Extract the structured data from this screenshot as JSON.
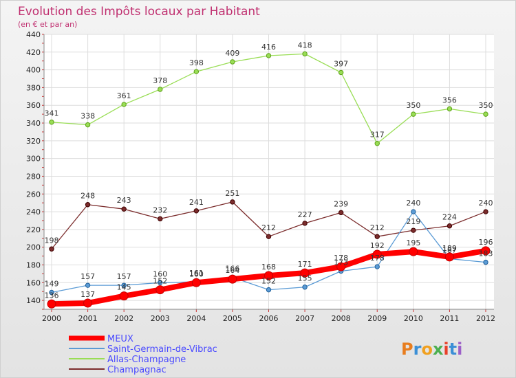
{
  "chart_data": {
    "type": "line",
    "title": "Evolution des Impôts locaux par Habitant",
    "subtitle": "(en € et par an)",
    "xlabel": "",
    "ylabel": "",
    "x": [
      "2000",
      "2001",
      "2002",
      "2003",
      "2004",
      "2005",
      "2006",
      "2007",
      "2008",
      "2009",
      "2010",
      "2011",
      "2012"
    ],
    "ylim": [
      130,
      440
    ],
    "yticks": [
      140,
      160,
      180,
      200,
      220,
      240,
      260,
      280,
      300,
      320,
      340,
      360,
      380,
      400,
      420,
      440
    ],
    "grid": true,
    "legend_position": "bottom-left",
    "series": [
      {
        "name": "MEUX",
        "color": "#ff0000",
        "values": [
          136,
          137,
          145,
          152,
          160,
          164,
          168,
          171,
          178,
          192,
          195,
          189,
          196
        ],
        "labels": [
          "136",
          "137",
          "145",
          "152",
          "160",
          "164",
          "168",
          "171",
          "178",
          "192",
          "195",
          "189",
          "196"
        ]
      },
      {
        "name": "Saint-Germain-de-Vibrac",
        "color": "#5b9bd5",
        "values": [
          149,
          157,
          157,
          160,
          161,
          166,
          152,
          155,
          173,
          178,
          240,
          187,
          183
        ],
        "labels": [
          "149",
          "157",
          "157",
          "160",
          "161",
          "166",
          "152",
          "155",
          "173",
          "178",
          "240",
          "187",
          "183"
        ]
      },
      {
        "name": "Allas-Champagne",
        "color": "#99dd55",
        "values": [
          341,
          338,
          361,
          378,
          398,
          409,
          416,
          418,
          397,
          317,
          350,
          356,
          350
        ],
        "labels": [
          "341",
          "338",
          "361",
          "378",
          "398",
          "409",
          "416",
          "418",
          "397",
          "317",
          "350",
          "356",
          "350"
        ]
      },
      {
        "name": "Champagnac",
        "color": "#7b2c2c",
        "values": [
          198,
          248,
          243,
          232,
          241,
          251,
          212,
          227,
          239,
          212,
          219,
          224,
          240
        ],
        "labels": [
          "198",
          "248",
          "243",
          "232",
          "241",
          "251",
          "212",
          "227",
          "239",
          "212",
          "219",
          "224",
          "240"
        ]
      }
    ],
    "logo": "Proxiti"
  }
}
